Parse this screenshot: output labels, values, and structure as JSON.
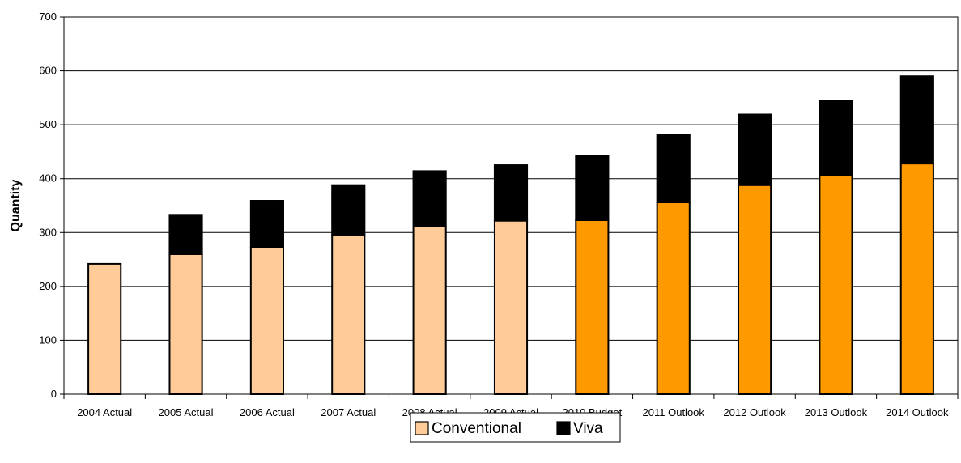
{
  "chart_data": {
    "type": "bar",
    "stacked": true,
    "title": "",
    "xlabel": "",
    "ylabel": "Quantity",
    "ylim": [
      0,
      700
    ],
    "yticks": [
      0,
      100,
      200,
      300,
      400,
      500,
      600,
      700
    ],
    "grid": true,
    "legend_position": "bottom",
    "categories": [
      "2004 Actual",
      "2005 Actual",
      "2006 Actual",
      "2007 Actual",
      "2008 Actual",
      "2009 Actual",
      "2010 Budget",
      "2011 Outlook",
      "2012 Outlook",
      "2013 Outlook",
      "2014 Outlook"
    ],
    "series": [
      {
        "name": "Conventional",
        "values": [
          242,
          260,
          272,
          296,
          311,
          322,
          323,
          356,
          388,
          406,
          428
        ]
      },
      {
        "name": "Viva",
        "values": [
          0,
          73,
          87,
          92,
          103,
          103,
          119,
          126,
          131,
          138,
          162
        ]
      }
    ],
    "colors": {
      "conventional_actual": "#FFCC99",
      "conventional_projected": "#FF9900",
      "viva": "#000000",
      "legend_conventional": "#FFCC99",
      "legend_viva": "#000000"
    },
    "projected_from_index": 6
  }
}
